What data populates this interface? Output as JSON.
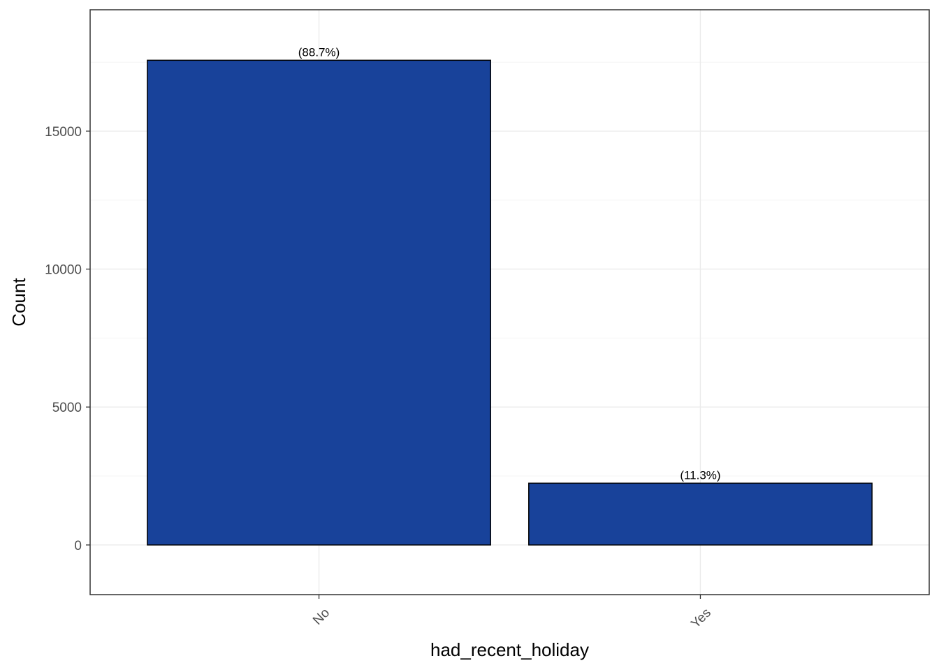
{
  "chart_data": {
    "type": "bar",
    "categories": [
      "No",
      "Yes"
    ],
    "values": [
      17570,
      2240
    ],
    "labels": [
      "(88.7%)",
      "(11.3%)"
    ],
    "title": "",
    "xlabel": "had_recent_holiday",
    "ylabel": "Count",
    "ylim": [
      -1800,
      19400
    ],
    "yticks": [
      0,
      5000,
      10000,
      15000
    ],
    "ytick_labels": [
      "0",
      "5000",
      "10000",
      "15000"
    ],
    "grid": true,
    "legend": "none",
    "x_tick_rotation_deg": -45,
    "colors": {
      "bar_fill": "#18429A",
      "bar_stroke": "#000000",
      "panel_border": "#333333",
      "grid_major": "#EBEBEB",
      "grid_minor": "#F4F4F4",
      "tick_text": "#4D4D4D"
    }
  }
}
